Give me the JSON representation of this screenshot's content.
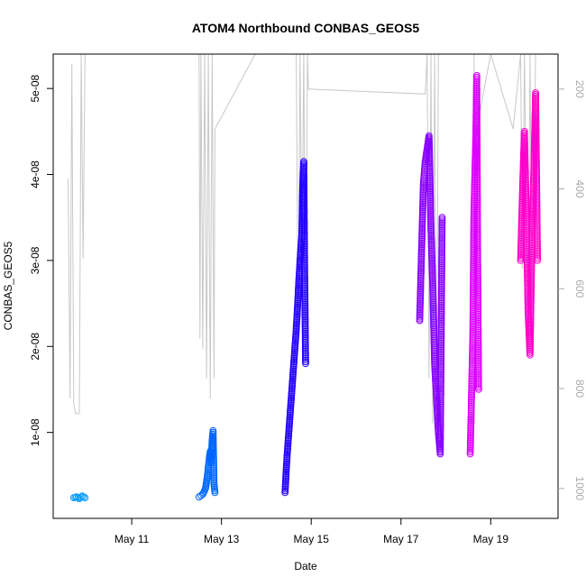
{
  "chart_data": {
    "type": "scatter",
    "title": "ATOM4 Northbound CONBAS_GEOS5",
    "xlabel": "Date",
    "ylabel": "CONBAS_GEOS5",
    "x_axis": {
      "unit": "date",
      "range": [
        "2016-05-09T06:00",
        "2016-05-20T12:00"
      ],
      "ticks": [
        {
          "value": "2016-05-11T00:00",
          "label": "May 11"
        },
        {
          "value": "2016-05-13T00:00",
          "label": "May 13"
        },
        {
          "value": "2016-05-15T00:00",
          "label": "May 15"
        },
        {
          "value": "2016-05-17T00:00",
          "label": "May 17"
        },
        {
          "value": "2016-05-19T00:00",
          "label": "May 19"
        }
      ]
    },
    "y_axis": {
      "range": [
        0,
        5.4e-08
      ],
      "ticks": [
        {
          "value": 1e-08,
          "label": "1e-08"
        },
        {
          "value": 2e-08,
          "label": "2e-08"
        },
        {
          "value": 3e-08,
          "label": "3e-08"
        },
        {
          "value": 4e-08,
          "label": "4e-08"
        },
        {
          "value": 5e-08,
          "label": "5e-08"
        }
      ]
    },
    "y2_axis": {
      "quantity": "pressure",
      "reversed": true,
      "range": [
        1060,
        130
      ],
      "ticks": [
        {
          "value": 200,
          "label": "200"
        },
        {
          "value": 400,
          "label": "400"
        },
        {
          "value": 600,
          "label": "600"
        },
        {
          "value": 800,
          "label": "800"
        },
        {
          "value": 1000,
          "label": "1000"
        }
      ]
    },
    "grid": false,
    "legend": "none",
    "series": [
      {
        "color": "#0099ff",
        "points": [
          [
            "2016-05-09T17:00",
            2.4e-09
          ],
          [
            "2016-05-09T18:30",
            2.5e-09
          ],
          [
            "2016-05-09T20:00",
            2.3e-09
          ],
          [
            "2016-05-09T21:30",
            2.6e-09
          ],
          [
            "2016-05-09T23:00",
            2.4e-09
          ]
        ]
      },
      {
        "color": "#0066ff",
        "points": [
          [
            "2016-05-12T12:00",
            2.5e-09
          ],
          [
            "2016-05-12T14:00",
            2.8e-09
          ],
          [
            "2016-05-12T15:30",
            3.5e-09
          ],
          [
            "2016-05-12T16:30",
            5e-09
          ],
          [
            "2016-05-12T17:30",
            7e-09
          ],
          [
            "2016-05-12T18:00",
            7.8e-09
          ],
          [
            "2016-05-12T18:30",
            6.5e-09
          ],
          [
            "2016-05-12T19:00",
            9e-09
          ],
          [
            "2016-05-12T19:30",
            1.02e-08
          ],
          [
            "2016-05-12T20:00",
            4e-09
          ],
          [
            "2016-05-12T20:30",
            3e-09
          ]
        ]
      },
      {
        "color": "#2200ff",
        "points": [
          [
            "2016-05-14T10:00",
            3e-09
          ],
          [
            "2016-05-14T11:00",
            7e-09
          ],
          [
            "2016-05-14T12:00",
            1e-08
          ],
          [
            "2016-05-14T13:00",
            1.3e-08
          ],
          [
            "2016-05-14T14:00",
            1.6e-08
          ],
          [
            "2016-05-14T15:00",
            1.9e-08
          ],
          [
            "2016-05-14T16:00",
            2.2e-08
          ],
          [
            "2016-05-14T17:00",
            2.6e-08
          ],
          [
            "2016-05-14T18:00",
            3e-08
          ],
          [
            "2016-05-14T19:00",
            3.3e-08
          ],
          [
            "2016-05-14T19:30",
            3.9e-08
          ],
          [
            "2016-05-14T20:00",
            4.15e-08
          ],
          [
            "2016-05-14T20:30",
            2.8e-08
          ],
          [
            "2016-05-14T21:00",
            1.8e-08
          ]
        ]
      },
      {
        "color": "#8800ff",
        "points": [
          [
            "2016-05-17T10:00",
            2.3e-08
          ],
          [
            "2016-05-17T11:00",
            3.1e-08
          ],
          [
            "2016-05-17T12:00",
            3.9e-08
          ],
          [
            "2016-05-17T13:00",
            4.15e-08
          ],
          [
            "2016-05-17T14:00",
            4.3e-08
          ],
          [
            "2016-05-17T15:00",
            4.45e-08
          ],
          [
            "2016-05-17T16:00",
            3.4e-08
          ],
          [
            "2016-05-17T17:00",
            2.7e-08
          ],
          [
            "2016-05-17T18:00",
            1.8e-08
          ],
          [
            "2016-05-17T19:00",
            1.4e-08
          ],
          [
            "2016-05-17T20:00",
            1e-08
          ],
          [
            "2016-05-17T21:00",
            7.5e-09
          ],
          [
            "2016-05-17T22:00",
            3.5e-08
          ]
        ]
      },
      {
        "color": "#dd00ff",
        "points": [
          [
            "2016-05-18T13:00",
            7.5e-09
          ],
          [
            "2016-05-18T13:30",
            1.2e-08
          ],
          [
            "2016-05-18T14:00",
            1.7e-08
          ],
          [
            "2016-05-18T14:30",
            2.2e-08
          ],
          [
            "2016-05-18T15:00",
            3.5e-08
          ],
          [
            "2016-05-18T15:30",
            4e-08
          ],
          [
            "2016-05-18T16:00",
            4.4e-08
          ],
          [
            "2016-05-18T16:30",
            5.15e-08
          ],
          [
            "2016-05-18T17:00",
            3e-08
          ],
          [
            "2016-05-18T17:30",
            1.5e-08
          ]
        ]
      },
      {
        "color": "#ff00cc",
        "points": [
          [
            "2016-05-19T16:00",
            3e-08
          ],
          [
            "2016-05-19T17:00",
            3.8e-08
          ],
          [
            "2016-05-19T18:00",
            4.5e-08
          ],
          [
            "2016-05-19T19:00",
            3.5e-08
          ],
          [
            "2016-05-19T20:00",
            2.4e-08
          ],
          [
            "2016-05-19T21:00",
            1.9e-08
          ],
          [
            "2016-05-19T22:00",
            3.2e-08
          ],
          [
            "2016-05-19T23:00",
            4e-08
          ],
          [
            "2016-05-20T00:00",
            4.95e-08
          ],
          [
            "2016-05-20T01:00",
            3e-08
          ]
        ]
      }
    ],
    "pressure_line": {
      "color": "#c8c8c8",
      "points": [
        [
          "2016-05-09T14:00",
          380
        ],
        [
          "2016-05-09T15:00",
          820
        ],
        [
          "2016-05-09T16:00",
          150
        ],
        [
          "2016-05-09T17:00",
          830
        ],
        [
          "2016-05-09T18:00",
          850
        ],
        [
          "2016-05-09T20:00",
          850
        ],
        [
          "2016-05-09T21:00",
          130
        ],
        [
          "2016-05-09T22:00",
          540
        ],
        [
          "2016-05-09T23:00",
          130
        ],
        [
          "2016-05-12T12:00",
          130
        ],
        [
          "2016-05-12T12:30",
          700
        ],
        [
          "2016-05-12T13:00",
          130
        ],
        [
          "2016-05-12T14:00",
          720
        ],
        [
          "2016-05-12T15:00",
          130
        ],
        [
          "2016-05-12T16:00",
          780
        ],
        [
          "2016-05-12T17:00",
          130
        ],
        [
          "2016-05-12T18:00",
          820
        ],
        [
          "2016-05-12T19:00",
          130
        ],
        [
          "2016-05-12T20:00",
          780
        ],
        [
          "2016-05-12T20:30",
          280
        ],
        [
          "2016-05-13T18:00",
          130
        ],
        [
          "2016-05-14T16:00",
          130
        ],
        [
          "2016-05-14T17:00",
          700
        ],
        [
          "2016-05-14T18:00",
          130
        ],
        [
          "2016-05-14T19:00",
          560
        ],
        [
          "2016-05-14T20:00",
          130
        ],
        [
          "2016-05-14T21:00",
          700
        ],
        [
          "2016-05-14T22:00",
          130
        ],
        [
          "2016-05-14T22:30",
          200
        ],
        [
          "2016-05-17T13:00",
          210
        ],
        [
          "2016-05-17T14:00",
          130
        ],
        [
          "2016-05-17T15:00",
          780
        ],
        [
          "2016-05-17T16:00",
          130
        ],
        [
          "2016-05-17T17:00",
          870
        ],
        [
          "2016-05-17T18:00",
          130
        ],
        [
          "2016-05-17T19:00",
          880
        ],
        [
          "2016-05-17T20:00",
          130
        ],
        [
          "2016-05-18T15:00",
          130
        ],
        [
          "2016-05-18T16:00",
          300
        ],
        [
          "2016-05-18T18:00",
          250
        ],
        [
          "2016-05-19T00:00",
          130
        ],
        [
          "2016-05-19T12:00",
          280
        ],
        [
          "2016-05-19T16:00",
          130
        ],
        [
          "2016-05-19T17:00",
          560
        ],
        [
          "2016-05-19T18:00",
          130
        ],
        [
          "2016-05-19T20:00",
          720
        ],
        [
          "2016-05-19T21:00",
          130
        ],
        [
          "2016-05-19T22:00",
          640
        ],
        [
          "2016-05-20T00:00",
          130
        ]
      ]
    }
  }
}
